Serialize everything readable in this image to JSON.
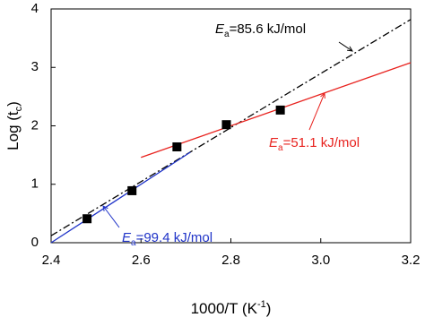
{
  "chart_data": {
    "type": "scatter",
    "x_label": [
      "1000/T (K",
      "-1",
      ")"
    ],
    "y_label": [
      "Log (t",
      "c",
      ")"
    ],
    "xlim": [
      2.4,
      3.2
    ],
    "xticks": [
      2.4,
      2.6,
      2.8,
      {
        "value": 3,
        "label": "3.0"
      },
      3.2
    ],
    "ylim": [
      0,
      4
    ],
    "yticks": [
      0,
      1,
      2,
      3,
      4
    ],
    "series": [
      {
        "type": "scatter",
        "color": "#000000",
        "x": [
          2.48,
          2.58,
          2.68,
          2.79,
          2.91
        ],
        "values": [
          0.41,
          0.89,
          1.64,
          2.02,
          2.27
        ]
      },
      {
        "type": "line",
        "style": "dashdot",
        "color": "#000000",
        "x": [
          2.4,
          3.2
        ],
        "values": [
          0.12,
          3.82
        ]
      },
      {
        "type": "line",
        "style": "solid",
        "color": "#e8221e",
        "x": [
          2.6,
          3.2
        ],
        "values": [
          1.46,
          3.08
        ]
      },
      {
        "type": "line",
        "style": "solid",
        "color": "#1f33c8",
        "x": [
          2.4,
          2.71
        ],
        "values": [
          0,
          1.55
        ]
      }
    ],
    "annotations": [
      {
        "symbol": "E",
        "subscript": "a",
        "text": "=85.6 kJ/mol",
        "color": "#000000"
      },
      {
        "symbol": "E",
        "subscript": "a",
        "text": "=51.1 kJ/mol",
        "color": "#e8221e"
      },
      {
        "symbol": "E",
        "subscript": "a",
        "text": "=99.4 kJ/mol",
        "color": "#1f33c8"
      }
    ]
  }
}
